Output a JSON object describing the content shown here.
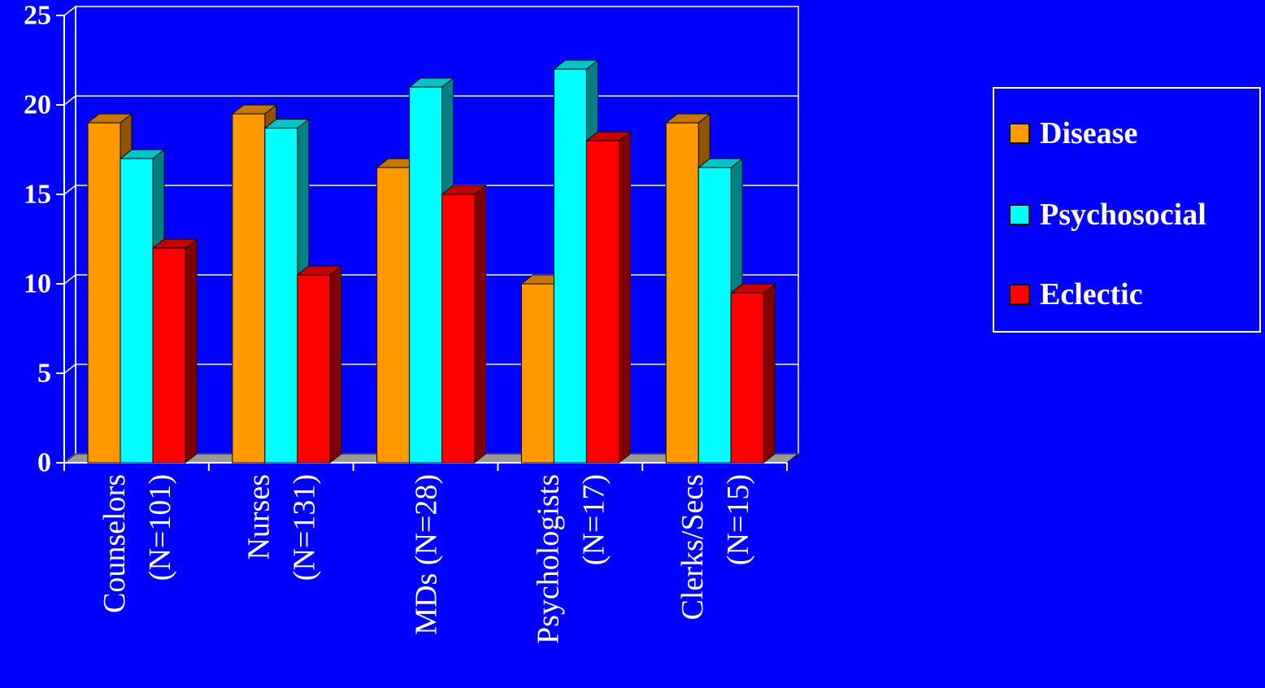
{
  "chart_data": {
    "type": "bar",
    "categories": [
      [
        "Counselors",
        "(N=101)"
      ],
      [
        "Nurses",
        "(N=131)"
      ],
      [
        "MDs (N=28)"
      ],
      [
        "Psychologists",
        "(N=17)"
      ],
      [
        "Clerks/Secs",
        "(N=15)"
      ]
    ],
    "series": [
      {
        "name": "Disease",
        "values": [
          19,
          19.5,
          16.5,
          10,
          19
        ],
        "color": "#ff9900",
        "side_color": "#8f5600",
        "top_color": "#c77700"
      },
      {
        "name": "Psychosocial",
        "values": [
          17,
          18.7,
          21,
          22,
          16.5
        ],
        "color": "#00ffff",
        "side_color": "#008080",
        "top_color": "#00c4c4"
      },
      {
        "name": "Eclectic",
        "values": [
          12,
          10.5,
          15,
          18,
          9.5
        ],
        "color": "#ff0000",
        "side_color": "#800000",
        "top_color": "#c40000"
      }
    ],
    "y_ticks": [
      "0",
      "5",
      "10",
      "15",
      "20",
      "25"
    ],
    "ylim": [
      0,
      25
    ],
    "grid": true,
    "legend_position": "right",
    "background": "#0000ff",
    "floor_color": "#999999"
  }
}
